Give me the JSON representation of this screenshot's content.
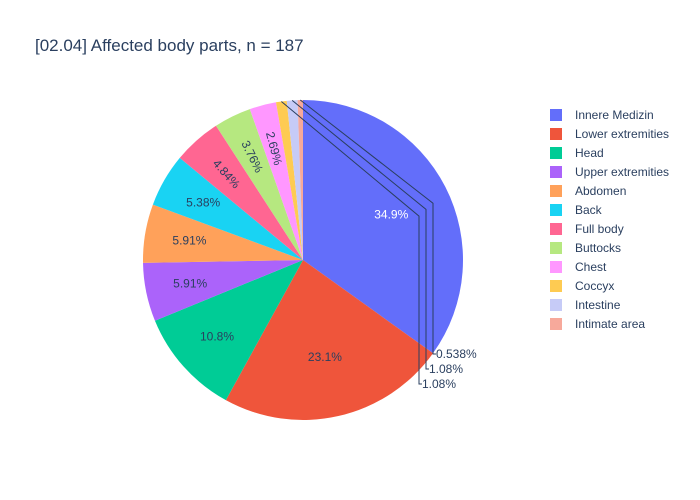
{
  "chart_data": {
    "type": "pie",
    "title": "[02.04] Affected body parts, n = 187",
    "legend_position": "right",
    "slices": [
      {
        "label": "Innere Medizin",
        "percent": 34.9,
        "text": "34.9%",
        "color": "#636efa"
      },
      {
        "label": "Lower extremities",
        "percent": 23.1,
        "text": "23.1%",
        "color": "#EF553B"
      },
      {
        "label": "Head",
        "percent": 10.8,
        "text": "10.8%",
        "color": "#00cc96"
      },
      {
        "label": "Upper extremities",
        "percent": 5.91,
        "text": "5.91%",
        "color": "#ab63fa"
      },
      {
        "label": "Abdomen",
        "percent": 5.91,
        "text": "5.91%",
        "color": "#FFA15A"
      },
      {
        "label": "Back",
        "percent": 5.38,
        "text": "5.38%",
        "color": "#19d3f3"
      },
      {
        "label": "Full body",
        "percent": 4.84,
        "text": "4.84%",
        "color": "#FF6692"
      },
      {
        "label": "Buttocks",
        "percent": 3.76,
        "text": "3.76%",
        "color": "#B6E880"
      },
      {
        "label": "Chest",
        "percent": 2.69,
        "text": "2.69%",
        "color": "#FF97FF"
      },
      {
        "label": "Coccyx",
        "percent": 1.08,
        "text": "1.08%",
        "color": "#FECB52"
      },
      {
        "label": "Intestine",
        "percent": 1.08,
        "text": "1.08%",
        "color": "#c6cbf7"
      },
      {
        "label": "Intimate area",
        "percent": 0.538,
        "text": "0.538%",
        "color": "#f7a99b"
      }
    ]
  }
}
